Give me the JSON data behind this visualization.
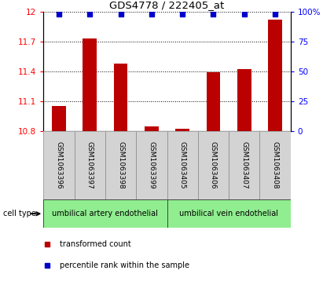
{
  "title": "GDS4778 / 222405_at",
  "samples": [
    "GSM1063396",
    "GSM1063397",
    "GSM1063398",
    "GSM1063399",
    "GSM1063405",
    "GSM1063406",
    "GSM1063407",
    "GSM1063408"
  ],
  "bar_values": [
    11.05,
    11.73,
    11.48,
    10.85,
    10.82,
    11.39,
    11.42,
    11.92
  ],
  "percentile_values": [
    98,
    98,
    98,
    98,
    98,
    98,
    98,
    98
  ],
  "bar_color": "#bb0000",
  "dot_color": "#0000cc",
  "ylim_left": [
    10.8,
    12.0
  ],
  "ylim_right": [
    0,
    100
  ],
  "yticks_left": [
    10.8,
    11.1,
    11.4,
    11.7,
    12.0
  ],
  "yticks_right": [
    0,
    25,
    50,
    75,
    100
  ],
  "group1_label": "umbilical artery endothelial",
  "group2_label": "umbilical vein endothelial",
  "group1_indices": [
    0,
    1,
    2,
    3
  ],
  "group2_indices": [
    4,
    5,
    6,
    7
  ],
  "cell_type_label": "cell type",
  "legend_bar_label": "transformed count",
  "legend_dot_label": "percentile rank within the sample",
  "group_bg_color": "#90ee90",
  "sample_bg_color": "#d3d3d3",
  "bar_base": 10.8,
  "fig_width": 4.25,
  "fig_height": 3.63
}
